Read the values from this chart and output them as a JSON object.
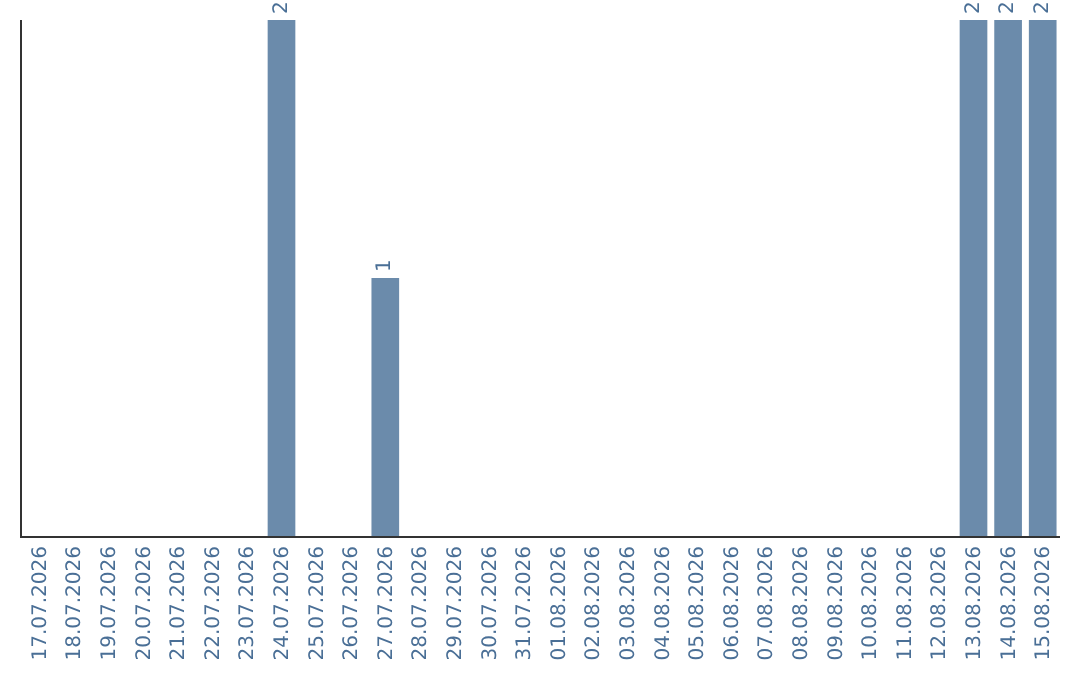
{
  "chart_data": {
    "type": "bar",
    "categories": [
      "17.07.2026",
      "18.07.2026",
      "19.07.2026",
      "20.07.2026",
      "21.07.2026",
      "22.07.2026",
      "23.07.2026",
      "24.07.2026",
      "25.07.2026",
      "26.07.2026",
      "27.07.2026",
      "28.07.2026",
      "29.07.2026",
      "30.07.2026",
      "31.07.2026",
      "01.08.2026",
      "02.08.2026",
      "03.08.2026",
      "04.08.2026",
      "05.08.2026",
      "06.08.2026",
      "07.08.2026",
      "08.08.2026",
      "09.08.2026",
      "10.08.2026",
      "11.08.2026",
      "12.08.2026",
      "13.08.2026",
      "14.08.2026",
      "15.08.2026"
    ],
    "values": [
      0,
      0,
      0,
      0,
      0,
      0,
      0,
      2,
      0,
      0,
      1,
      0,
      0,
      0,
      0,
      0,
      0,
      0,
      0,
      0,
      0,
      0,
      0,
      0,
      0,
      0,
      0,
      2,
      2,
      2
    ],
    "value_labels": [
      null,
      null,
      null,
      null,
      null,
      null,
      null,
      "2",
      null,
      null,
      "1",
      null,
      null,
      null,
      null,
      null,
      null,
      null,
      null,
      null,
      null,
      null,
      null,
      null,
      null,
      null,
      null,
      "2",
      "2",
      "2"
    ],
    "color": "#6b8bab",
    "ylim": [
      0,
      2
    ],
    "tick_labels": "x",
    "grid": false,
    "legend": false
  }
}
